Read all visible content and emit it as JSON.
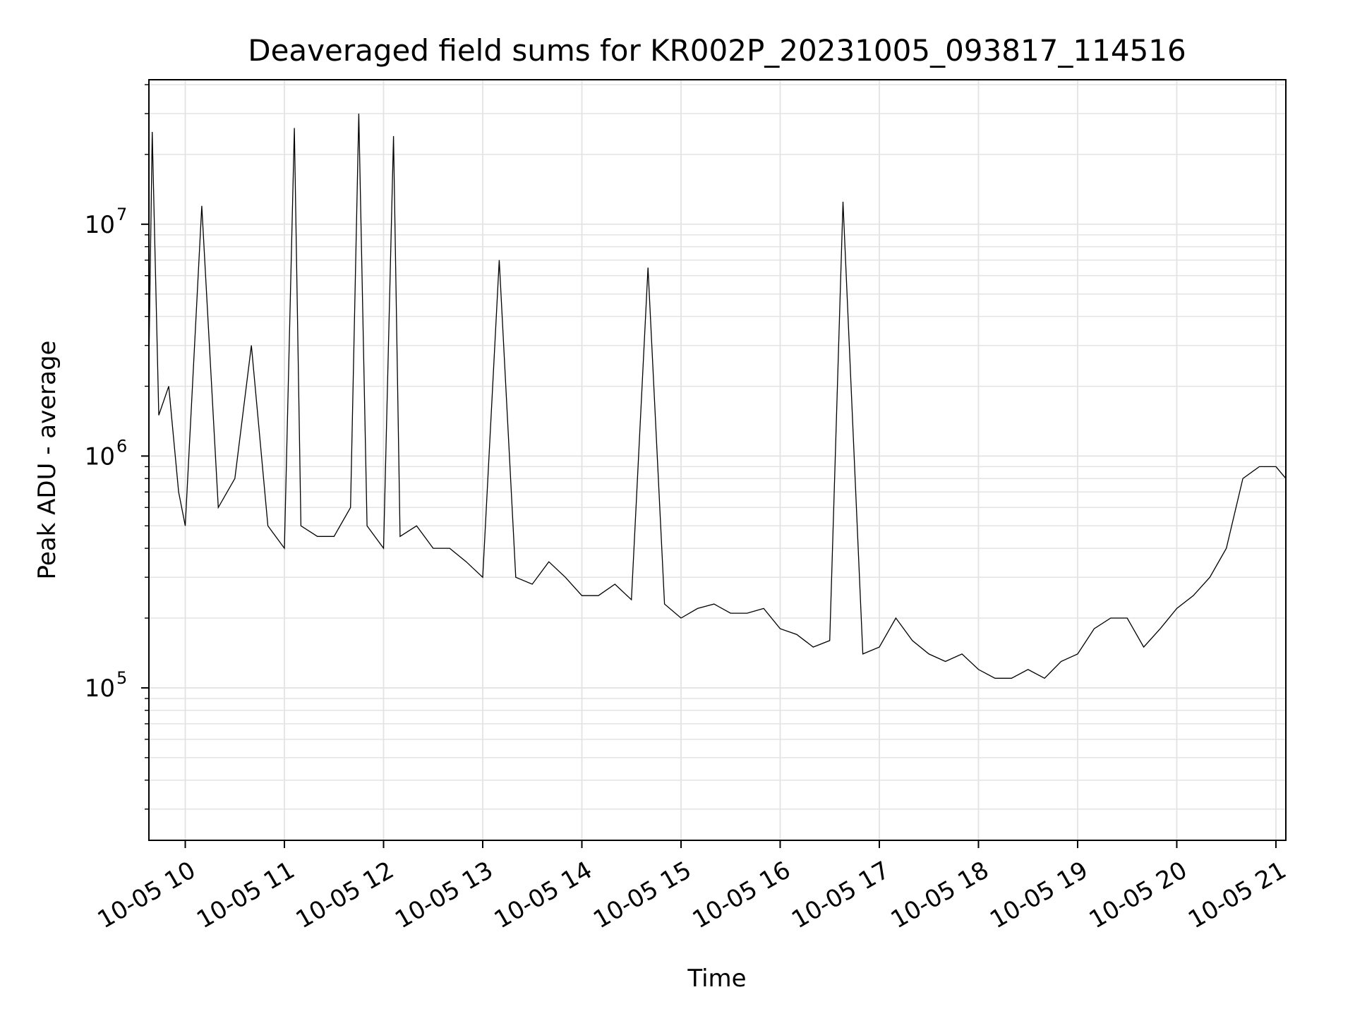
{
  "chart_data": {
    "type": "line",
    "title": "Deaveraged field sums for KR002P_20231005_093817_114516",
    "xlabel": "Time",
    "ylabel": "Peak ADU - average",
    "yscale": "log",
    "xlim": [
      "2023-10-05 09:38",
      "2023-10-05 21:06"
    ],
    "ylim": [
      22000,
      42000000
    ],
    "grid": true,
    "line_color": "#000000",
    "x_ticks": [
      "10-05 10",
      "10-05 11",
      "10-05 12",
      "10-05 13",
      "10-05 14",
      "10-05 15",
      "10-05 16",
      "10-05 17",
      "10-05 18",
      "10-05 19",
      "10-05 20",
      "10-05 21"
    ],
    "y_ticks": [
      {
        "base": "10",
        "exp": "5",
        "value": 100000
      },
      {
        "base": "10",
        "exp": "6",
        "value": 1000000
      },
      {
        "base": "10",
        "exp": "7",
        "value": 10000000
      }
    ],
    "series": [
      {
        "x": [
          "2023-10-05 09:38",
          "2023-10-05 09:40",
          "2023-10-05 09:44",
          "2023-10-05 09:50",
          "2023-10-05 09:56",
          "2023-10-05 10:00",
          "2023-10-05 10:10",
          "2023-10-05 10:20",
          "2023-10-05 10:30",
          "2023-10-05 10:40",
          "2023-10-05 10:50",
          "2023-10-05 11:00",
          "2023-10-05 11:06",
          "2023-10-05 11:10",
          "2023-10-05 11:20",
          "2023-10-05 11:30",
          "2023-10-05 11:40",
          "2023-10-05 11:45",
          "2023-10-05 11:50",
          "2023-10-05 12:00",
          "2023-10-05 12:06",
          "2023-10-05 12:10",
          "2023-10-05 12:20",
          "2023-10-05 12:30",
          "2023-10-05 12:40",
          "2023-10-05 12:50",
          "2023-10-05 13:00",
          "2023-10-05 13:10",
          "2023-10-05 13:20",
          "2023-10-05 13:30",
          "2023-10-05 13:40",
          "2023-10-05 13:50",
          "2023-10-05 14:00",
          "2023-10-05 14:10",
          "2023-10-05 14:20",
          "2023-10-05 14:30",
          "2023-10-05 14:40",
          "2023-10-05 14:50",
          "2023-10-05 15:00",
          "2023-10-05 15:10",
          "2023-10-05 15:20",
          "2023-10-05 15:30",
          "2023-10-05 15:40",
          "2023-10-05 15:50",
          "2023-10-05 16:00",
          "2023-10-05 16:10",
          "2023-10-05 16:20",
          "2023-10-05 16:30",
          "2023-10-05 16:38",
          "2023-10-05 16:50",
          "2023-10-05 17:00",
          "2023-10-05 17:10",
          "2023-10-05 17:20",
          "2023-10-05 17:30",
          "2023-10-05 17:40",
          "2023-10-05 17:50",
          "2023-10-05 18:00",
          "2023-10-05 18:10",
          "2023-10-05 18:20",
          "2023-10-05 18:30",
          "2023-10-05 18:40",
          "2023-10-05 18:50",
          "2023-10-05 19:00",
          "2023-10-05 19:10",
          "2023-10-05 19:20",
          "2023-10-05 19:30",
          "2023-10-05 19:40",
          "2023-10-05 19:50",
          "2023-10-05 20:00",
          "2023-10-05 20:10",
          "2023-10-05 20:20",
          "2023-10-05 20:30",
          "2023-10-05 20:40",
          "2023-10-05 20:50",
          "2023-10-05 21:00",
          "2023-10-05 21:06"
        ],
        "y": [
          2500000,
          25000000,
          1500000,
          2000000,
          700000,
          500000,
          12000000,
          600000,
          800000,
          3000000,
          500000,
          400000,
          26000000,
          500000,
          450000,
          450000,
          600000,
          30000000,
          500000,
          400000,
          24000000,
          450000,
          500000,
          400000,
          400000,
          350000,
          300000,
          7000000,
          300000,
          280000,
          350000,
          300000,
          250000,
          250000,
          280000,
          240000,
          6500000,
          230000,
          200000,
          220000,
          230000,
          210000,
          210000,
          220000,
          180000,
          170000,
          150000,
          160000,
          12500000,
          140000,
          150000,
          200000,
          160000,
          140000,
          130000,
          140000,
          120000,
          110000,
          110000,
          120000,
          110000,
          130000,
          140000,
          180000,
          200000,
          200000,
          150000,
          180000,
          220000,
          250000,
          300000,
          400000,
          800000,
          900000,
          900000,
          800000
        ]
      }
    ]
  }
}
